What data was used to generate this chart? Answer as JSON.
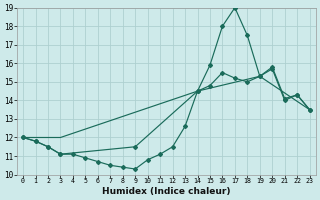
{
  "xlabel": "Humidex (Indice chaleur)",
  "bg_color": "#ceeaea",
  "line_color": "#1a6b5a",
  "grid_color": "#aed0d0",
  "xlim": [
    -0.5,
    23.5
  ],
  "ylim": [
    10,
    19
  ],
  "xticks": [
    0,
    1,
    2,
    3,
    4,
    5,
    6,
    7,
    8,
    9,
    10,
    11,
    12,
    13,
    14,
    15,
    16,
    17,
    18,
    19,
    20,
    21,
    22,
    23
  ],
  "yticks": [
    10,
    11,
    12,
    13,
    14,
    15,
    16,
    17,
    18,
    19
  ],
  "line1_x": [
    0,
    1,
    2,
    3,
    4,
    5,
    6,
    7,
    8,
    9,
    10,
    11,
    12,
    13,
    14,
    15,
    16,
    17,
    18,
    19,
    20,
    21,
    22,
    23
  ],
  "line1_y": [
    12.0,
    11.8,
    11.5,
    11.1,
    11.1,
    10.9,
    10.7,
    10.5,
    10.4,
    10.3,
    10.8,
    11.1,
    11.5,
    12.6,
    14.5,
    15.9,
    18.0,
    19.0,
    17.5,
    15.3,
    15.8,
    14.1,
    14.3,
    13.5
  ],
  "line2_x": [
    0,
    1,
    2,
    3,
    9,
    14,
    15,
    16,
    17,
    18,
    19,
    20,
    21,
    22,
    23
  ],
  "line2_y": [
    12.0,
    11.8,
    11.5,
    11.1,
    11.5,
    14.5,
    14.8,
    15.5,
    15.2,
    15.0,
    15.3,
    15.7,
    14.0,
    14.3,
    13.5
  ],
  "line3_x": [
    0,
    3,
    14,
    19,
    23
  ],
  "line3_y": [
    12.0,
    12.0,
    14.5,
    15.3,
    13.5
  ]
}
